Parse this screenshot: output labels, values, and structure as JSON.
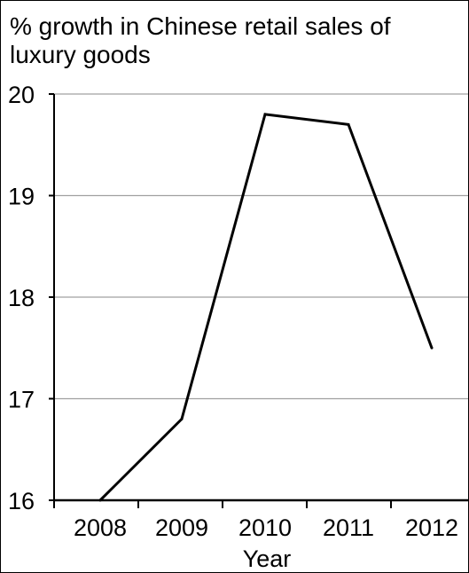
{
  "chart_data": {
    "type": "line",
    "title_lines": [
      "% growth in Chinese retail sales of",
      "luxury goods"
    ],
    "xlabel": "Year",
    "ylabel": "",
    "categories": [
      "2008",
      "2009",
      "2010",
      "2011",
      "2012"
    ],
    "series": [
      {
        "values": [
          16.0,
          16.8,
          19.8,
          19.7,
          17.5
        ]
      }
    ],
    "ylim": [
      16,
      20
    ],
    "yticks": [
      16,
      17,
      18,
      19,
      20
    ],
    "grid": true,
    "colors": {
      "line": "#000000",
      "grid": "#a0a0a0",
      "axis": "#000000"
    }
  }
}
